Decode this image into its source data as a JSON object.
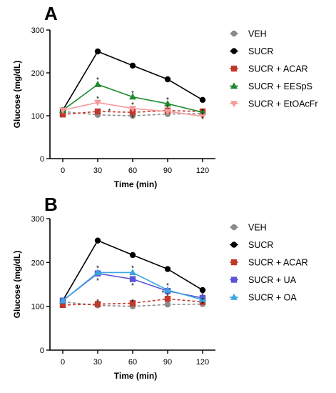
{
  "chart_data": [
    {
      "panel_label": "A",
      "type": "line",
      "xlabel": "Time (min)",
      "ylabel": "Glucose (mg/dL)",
      "x": [
        0,
        30,
        60,
        90,
        120
      ],
      "xticks": [
        "0",
        "30",
        "60",
        "90",
        "120"
      ],
      "yticks": [
        "0",
        "100",
        "200",
        "300"
      ],
      "ylim": [
        0,
        300
      ],
      "legend_position": "right",
      "series": [
        {
          "name": "VEH",
          "values": [
            110,
            102,
            100,
            104,
            105
          ],
          "color": "#8a8a8a",
          "dashed": true,
          "marker": "circle"
        },
        {
          "name": "SUCR",
          "values": [
            113,
            250,
            217,
            185,
            137
          ],
          "color": "#000000",
          "dashed": false,
          "marker": "circle"
        },
        {
          "name": "SUCR + ACAR",
          "values": [
            103,
            110,
            108,
            112,
            110
          ],
          "color": "#c0392b",
          "dashed": true,
          "marker": "square"
        },
        {
          "name": "SUCR + EESpS",
          "values": [
            113,
            173,
            144,
            128,
            108
          ],
          "color": "#1e8a2e",
          "dashed": false,
          "marker": "triangle-up"
        },
        {
          "name": "SUCR + EtOAcFr",
          "values": [
            113,
            131,
            117,
            110,
            99
          ],
          "color": "#f49a9a",
          "dashed": false,
          "marker": "triangle-down"
        }
      ],
      "annotations": [
        {
          "text": "*",
          "x": 30,
          "y": 185
        },
        {
          "text": "*",
          "x": 30,
          "y": 141
        },
        {
          "text": "*",
          "x": 60,
          "y": 153
        },
        {
          "text": "*",
          "x": 60,
          "y": 127
        },
        {
          "text": "*",
          "x": 60,
          "y": 97
        },
        {
          "text": "*",
          "x": 90,
          "y": 138
        },
        {
          "text": "*",
          "x": 90,
          "y": 120
        },
        {
          "text": "*",
          "x": 120,
          "y": 112
        },
        {
          "text": "*",
          "x": 120,
          "y": 103
        },
        {
          "text": "*",
          "x": 120,
          "y": 94
        },
        {
          "text": "*",
          "x": 40,
          "y": 112
        }
      ]
    },
    {
      "panel_label": "B",
      "type": "line",
      "xlabel": "Time (min)",
      "ylabel": "Glucose (mg/dL)",
      "x": [
        0,
        30,
        60,
        90,
        120
      ],
      "xticks": [
        "0",
        "30",
        "60",
        "90",
        "120"
      ],
      "yticks": [
        "0",
        "100",
        "200",
        "300"
      ],
      "ylim": [
        0,
        300
      ],
      "legend_position": "right",
      "series": [
        {
          "name": "VEH",
          "values": [
            110,
            102,
            100,
            104,
            105
          ],
          "color": "#8a8a8a",
          "dashed": true,
          "marker": "circle"
        },
        {
          "name": "SUCR",
          "values": [
            113,
            250,
            217,
            185,
            137
          ],
          "color": "#000000",
          "dashed": false,
          "marker": "circle"
        },
        {
          "name": "SUCR + ACAR",
          "values": [
            103,
            105,
            107,
            117,
            110
          ],
          "color": "#c0392b",
          "dashed": true,
          "marker": "square"
        },
        {
          "name": "SUCR + UA",
          "values": [
            113,
            175,
            162,
            135,
            119
          ],
          "color": "#5a55d6",
          "dashed": false,
          "marker": "square"
        },
        {
          "name": "SUCR + OA",
          "values": [
            113,
            177,
            177,
            137,
            115
          ],
          "color": "#3aa6e0",
          "dashed": false,
          "marker": "triangle-up"
        }
      ],
      "annotations": [
        {
          "text": "*",
          "x": 30,
          "y": 188
        },
        {
          "text": "*",
          "x": 30,
          "y": 160
        },
        {
          "text": "*",
          "x": 30,
          "y": 112
        },
        {
          "text": "*",
          "x": 60,
          "y": 188
        },
        {
          "text": "*",
          "x": 60,
          "y": 148
        },
        {
          "text": "*",
          "x": 60,
          "y": 112
        },
        {
          "text": "*",
          "x": 90,
          "y": 148
        },
        {
          "text": "*",
          "x": 90,
          "y": 125
        },
        {
          "text": "*",
          "x": 86,
          "y": 132
        },
        {
          "text": "*",
          "x": 120,
          "y": 126
        },
        {
          "text": "*",
          "x": 120,
          "y": 116
        },
        {
          "text": "*",
          "x": 120,
          "y": 107
        }
      ]
    }
  ]
}
